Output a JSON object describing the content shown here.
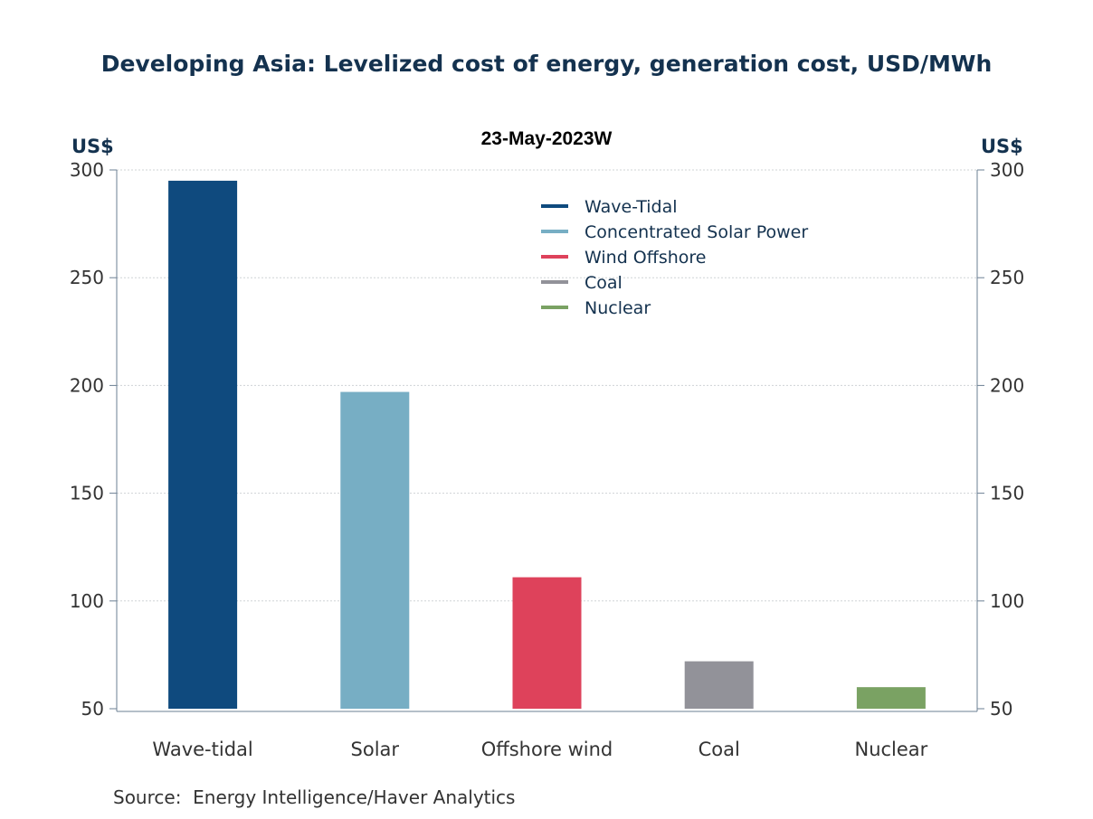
{
  "chart_data": {
    "type": "bar",
    "title": "Developing Asia: Levelized cost of energy, generation cost, USD/MWh",
    "subtitle": "23-May-2023W",
    "ylabel_left": "US$",
    "ylabel_right": "US$",
    "categories": [
      "Wave-tidal",
      "Solar",
      "Offshore wind",
      "Coal",
      "Nuclear"
    ],
    "values": [
      295,
      197,
      111,
      72,
      60
    ],
    "legend": [
      "Wave-Tidal",
      "Concentrated Solar Power",
      "Wind Offshore",
      "Coal",
      "Nuclear"
    ],
    "colors": [
      "#0f4a7e",
      "#77aec4",
      "#de425b",
      "#929299",
      "#7aa263"
    ],
    "ylim": [
      50,
      300
    ],
    "yticks": [
      50,
      100,
      150,
      200,
      250,
      300
    ],
    "grid": true,
    "legend_position": "top-center"
  },
  "source": "Source:  Energy Intelligence/Haver Analytics"
}
